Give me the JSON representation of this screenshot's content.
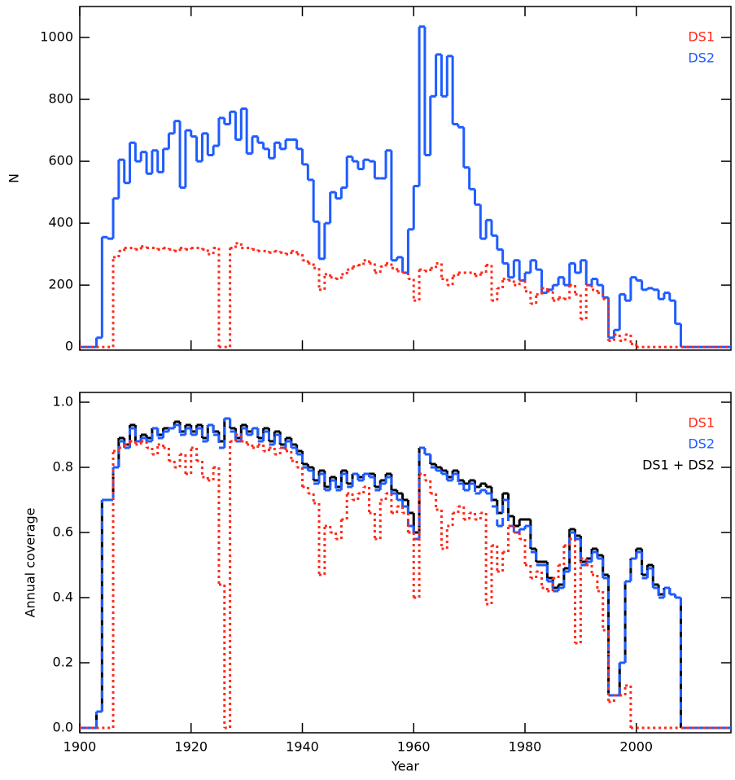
{
  "chart_data": [
    {
      "type": "histogram",
      "ylabel": "N",
      "bins": [
        1900,
        1901,
        1902,
        1903,
        1904,
        1905,
        1906,
        1907,
        1908,
        1909,
        1910,
        1911,
        1912,
        1913,
        1914,
        1915,
        1916,
        1917,
        1918,
        1919,
        1920,
        1921,
        1922,
        1923,
        1924,
        1925,
        1926,
        1927,
        1928,
        1929,
        1930,
        1931,
        1932,
        1933,
        1934,
        1935,
        1936,
        1937,
        1938,
        1939,
        1940,
        1941,
        1942,
        1943,
        1944,
        1945,
        1946,
        1947,
        1948,
        1949,
        1950,
        1951,
        1952,
        1953,
        1954,
        1955,
        1956,
        1957,
        1958,
        1959,
        1960,
        1961,
        1962,
        1963,
        1964,
        1965,
        1966,
        1967,
        1968,
        1969,
        1970,
        1971,
        1972,
        1973,
        1974,
        1975,
        1976,
        1977,
        1978,
        1979,
        1980,
        1981,
        1982,
        1983,
        1984,
        1985,
        1986,
        1987,
        1988,
        1989,
        1990,
        1991,
        1992,
        1993,
        1994,
        1995,
        1996,
        1997,
        1998,
        1999,
        2000,
        2001,
        2002,
        2003,
        2004,
        2005,
        2006,
        2007,
        2008,
        2009,
        2010,
        2011,
        2012,
        2013,
        2014,
        2015,
        2016,
        2017
      ],
      "series": [
        {
          "name": "DS1",
          "color": "#ff2a1a",
          "linestyle": "dotted",
          "values": [
            0,
            0,
            0,
            0,
            0,
            0,
            290,
            310,
            320,
            320,
            315,
            325,
            320,
            320,
            315,
            320,
            315,
            310,
            320,
            315,
            320,
            320,
            315,
            300,
            320,
            0,
            0,
            320,
            335,
            320,
            320,
            315,
            310,
            310,
            305,
            310,
            305,
            300,
            310,
            300,
            280,
            270,
            255,
            185,
            235,
            225,
            220,
            235,
            250,
            260,
            265,
            280,
            270,
            240,
            260,
            270,
            255,
            245,
            240,
            220,
            150,
            250,
            245,
            255,
            270,
            220,
            200,
            230,
            240,
            240,
            240,
            230,
            240,
            265,
            150,
            190,
            220,
            215,
            200,
            215,
            180,
            140,
            170,
            190,
            180,
            150,
            160,
            155,
            200,
            170,
            90,
            200,
            185,
            175,
            155,
            20,
            40,
            20,
            40,
            10,
            0,
            0,
            0,
            0,
            0,
            0,
            0,
            0,
            0,
            0,
            0,
            0,
            0,
            0,
            0,
            0,
            0
          ]
        },
        {
          "name": "DS2",
          "color": "#1f5cff",
          "linestyle": "solid",
          "values": [
            0,
            0,
            0,
            30,
            355,
            350,
            480,
            605,
            530,
            660,
            600,
            630,
            560,
            635,
            565,
            640,
            690,
            730,
            515,
            700,
            680,
            600,
            690,
            620,
            650,
            740,
            720,
            760,
            670,
            770,
            625,
            680,
            660,
            640,
            610,
            660,
            640,
            670,
            670,
            640,
            590,
            540,
            405,
            285,
            400,
            500,
            480,
            515,
            615,
            600,
            575,
            605,
            600,
            545,
            545,
            635,
            280,
            290,
            240,
            380,
            520,
            1035,
            620,
            810,
            945,
            810,
            940,
            720,
            710,
            580,
            510,
            460,
            350,
            410,
            360,
            315,
            270,
            225,
            280,
            215,
            240,
            280,
            250,
            175,
            185,
            200,
            225,
            200,
            270,
            240,
            280,
            200,
            220,
            200,
            160,
            30,
            55,
            170,
            150,
            225,
            215,
            185,
            190,
            185,
            155,
            175,
            150,
            75,
            0,
            0,
            0,
            0,
            0,
            0,
            0,
            0,
            0
          ]
        }
      ],
      "xlim": [
        1900,
        2017
      ],
      "xticks": [
        1900,
        1920,
        1940,
        1960,
        1980,
        2000
      ],
      "ylim": [
        -10,
        1100
      ],
      "yticks": [
        {
          "value": 0,
          "label": "0"
        },
        200,
        400,
        600,
        800,
        1000
      ],
      "legend": "upper right"
    },
    {
      "type": "histogram",
      "xlabel": "Year",
      "ylabel": "Annual coverage",
      "bins": [
        1900,
        1901,
        1902,
        1903,
        1904,
        1905,
        1906,
        1907,
        1908,
        1909,
        1910,
        1911,
        1912,
        1913,
        1914,
        1915,
        1916,
        1917,
        1918,
        1919,
        1920,
        1921,
        1922,
        1923,
        1924,
        1925,
        1926,
        1927,
        1928,
        1929,
        1930,
        1931,
        1932,
        1933,
        1934,
        1935,
        1936,
        1937,
        1938,
        1939,
        1940,
        1941,
        1942,
        1943,
        1944,
        1945,
        1946,
        1947,
        1948,
        1949,
        1950,
        1951,
        1952,
        1953,
        1954,
        1955,
        1956,
        1957,
        1958,
        1959,
        1960,
        1961,
        1962,
        1963,
        1964,
        1965,
        1966,
        1967,
        1968,
        1969,
        1970,
        1971,
        1972,
        1973,
        1974,
        1975,
        1976,
        1977,
        1978,
        1979,
        1980,
        1981,
        1982,
        1983,
        1984,
        1985,
        1986,
        1987,
        1988,
        1989,
        1990,
        1991,
        1992,
        1993,
        1994,
        1995,
        1996,
        1997,
        1998,
        1999,
        2000,
        2001,
        2002,
        2003,
        2004,
        2005,
        2006,
        2007,
        2008,
        2009,
        2010,
        2011,
        2012,
        2013,
        2014,
        2015,
        2016,
        2017
      ],
      "series": [
        {
          "name": "DS1",
          "color": "#ff2a1a",
          "linestyle": "dotted",
          "values": [
            0,
            0,
            0,
            0,
            0,
            0,
            0.85,
            0.86,
            0.87,
            0.88,
            0.87,
            0.88,
            0.86,
            0.84,
            0.87,
            0.86,
            0.82,
            0.8,
            0.84,
            0.78,
            0.86,
            0.82,
            0.77,
            0.76,
            0.8,
            0.44,
            0,
            0.88,
            0.9,
            0.88,
            0.87,
            0.86,
            0.87,
            0.85,
            0.86,
            0.84,
            0.86,
            0.85,
            0.82,
            0.8,
            0.74,
            0.72,
            0.69,
            0.47,
            0.62,
            0.6,
            0.58,
            0.64,
            0.72,
            0.7,
            0.72,
            0.74,
            0.66,
            0.58,
            0.7,
            0.72,
            0.66,
            0.68,
            0.66,
            0.6,
            0.4,
            0.78,
            0.76,
            0.72,
            0.67,
            0.55,
            0.62,
            0.66,
            0.68,
            0.64,
            0.66,
            0.64,
            0.66,
            0.38,
            0.56,
            0.48,
            0.54,
            0.62,
            0.6,
            0.58,
            0.5,
            0.46,
            0.48,
            0.43,
            0.42,
            0.46,
            0.5,
            0.56,
            0.58,
            0.26,
            0.52,
            0.5,
            0.47,
            0.42,
            0.3,
            0.08,
            0.1,
            0.1,
            0.13,
            0,
            0,
            0,
            0,
            0,
            0,
            0,
            0,
            0,
            0,
            0,
            0,
            0,
            0,
            0,
            0,
            0,
            0
          ]
        },
        {
          "name": "DS2",
          "color": "#1f5cff",
          "linestyle": "dashed",
          "values": [
            0,
            0,
            0,
            0.05,
            0.7,
            0.7,
            0.8,
            0.88,
            0.86,
            0.92,
            0.88,
            0.89,
            0.88,
            0.92,
            0.89,
            0.91,
            0.92,
            0.93,
            0.9,
            0.92,
            0.9,
            0.92,
            0.88,
            0.93,
            0.9,
            0.86,
            0.95,
            0.91,
            0.88,
            0.92,
            0.9,
            0.92,
            0.88,
            0.91,
            0.87,
            0.9,
            0.86,
            0.88,
            0.86,
            0.84,
            0.8,
            0.79,
            0.75,
            0.78,
            0.73,
            0.76,
            0.73,
            0.78,
            0.74,
            0.78,
            0.76,
            0.78,
            0.77,
            0.73,
            0.75,
            0.77,
            0.72,
            0.7,
            0.68,
            0.62,
            0.58,
            0.86,
            0.84,
            0.8,
            0.79,
            0.78,
            0.76,
            0.78,
            0.75,
            0.73,
            0.75,
            0.72,
            0.73,
            0.72,
            0.68,
            0.62,
            0.7,
            0.62,
            0.6,
            0.61,
            0.62,
            0.54,
            0.5,
            0.5,
            0.45,
            0.42,
            0.43,
            0.48,
            0.6,
            0.58,
            0.5,
            0.51,
            0.54,
            0.52,
            0.46,
            0.1,
            0.1,
            0.2,
            0.45,
            0.52,
            0.54,
            0.46,
            0.49,
            0.43,
            0.4,
            0.43,
            0.41,
            0.4,
            0,
            0,
            0,
            0,
            0,
            0,
            0,
            0,
            0
          ]
        },
        {
          "name": "DS1 + DS2",
          "color": "#000000",
          "linestyle": "solid",
          "values": [
            0,
            0,
            0,
            0.05,
            0.7,
            0.7,
            0.8,
            0.89,
            0.87,
            0.93,
            0.88,
            0.9,
            0.89,
            0.92,
            0.9,
            0.92,
            0.92,
            0.94,
            0.91,
            0.93,
            0.91,
            0.93,
            0.89,
            0.93,
            0.91,
            0.88,
            0.95,
            0.92,
            0.89,
            0.93,
            0.91,
            0.92,
            0.89,
            0.92,
            0.88,
            0.91,
            0.87,
            0.89,
            0.87,
            0.85,
            0.81,
            0.8,
            0.76,
            0.79,
            0.74,
            0.77,
            0.74,
            0.79,
            0.75,
            0.78,
            0.77,
            0.78,
            0.78,
            0.74,
            0.76,
            0.78,
            0.73,
            0.72,
            0.7,
            0.66,
            0.6,
            0.86,
            0.84,
            0.81,
            0.8,
            0.79,
            0.77,
            0.79,
            0.76,
            0.75,
            0.76,
            0.74,
            0.75,
            0.74,
            0.7,
            0.66,
            0.72,
            0.65,
            0.62,
            0.64,
            0.64,
            0.55,
            0.51,
            0.51,
            0.46,
            0.43,
            0.44,
            0.49,
            0.61,
            0.59,
            0.51,
            0.52,
            0.55,
            0.53,
            0.47,
            0.1,
            0.1,
            0.2,
            0.45,
            0.52,
            0.55,
            0.47,
            0.5,
            0.44,
            0.41,
            0.43,
            0.41,
            0.4,
            0,
            0,
            0,
            0,
            0,
            0,
            0,
            0,
            0
          ]
        }
      ],
      "xlim": [
        1900,
        2017
      ],
      "xticks": [
        1900,
        1920,
        1940,
        1960,
        1980,
        2000
      ],
      "ylim": [
        -0.015,
        1.03
      ],
      "yticks": [
        {
          "value": 0,
          "label": "0.0"
        },
        0.2,
        0.4,
        0.6,
        0.8,
        {
          "value": 1,
          "label": "1.0"
        }
      ],
      "legend": "upper right"
    }
  ]
}
